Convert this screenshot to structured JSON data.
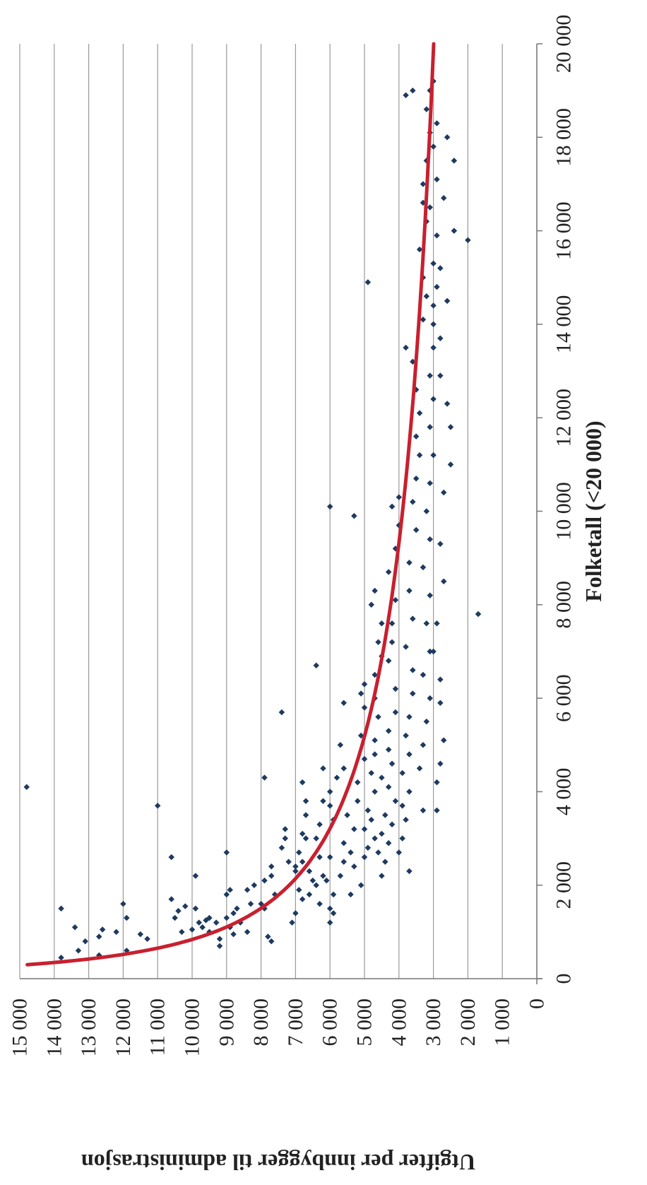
{
  "chart_data": {
    "type": "scatter",
    "orientation": "rotated-90-clockwise",
    "xlabel": "Folketall (<20 000)",
    "ylabel": "Utgifter per innbygger til administrasjon",
    "xlim": [
      0,
      20000
    ],
    "ylim": [
      0,
      15000
    ],
    "x_ticks": [
      0,
      2000,
      4000,
      6000,
      8000,
      10000,
      12000,
      14000,
      16000,
      18000,
      20000
    ],
    "x_tick_labels": [
      "0",
      "2 000",
      "4 000",
      "6 000",
      "8 000",
      "10 000",
      "12 000",
      "14 000",
      "16 000",
      "18 000",
      "20 000"
    ],
    "y_ticks": [
      0,
      1000,
      2000,
      3000,
      4000,
      5000,
      6000,
      7000,
      8000,
      9000,
      10000,
      11000,
      12000,
      13000,
      14000,
      15000
    ],
    "y_tick_labels": [
      "0",
      "1 000",
      "2 000",
      "3 000",
      "4 000",
      "5 000",
      "6 000",
      "7 000",
      "8 000",
      "9 000",
      "10 000",
      "11 000",
      "12 000",
      "13 000",
      "14 000",
      "15 000"
    ],
    "grid": "vertical lines at every y tick (value axis)",
    "marker_color": "#1e3a5f",
    "trend": {
      "type": "power",
      "color": "#c8202f",
      "anchors": [
        [
          300,
          14800
        ],
        [
          1000,
          9800
        ],
        [
          2000,
          7000
        ],
        [
          3000,
          6000
        ],
        [
          5000,
          4950
        ],
        [
          8000,
          4200
        ],
        [
          12000,
          3650
        ],
        [
          16000,
          3300
        ],
        [
          20000,
          3050
        ]
      ]
    },
    "points": [
      [
        450,
        13800
      ],
      [
        600,
        13300
      ],
      [
        800,
        13100
      ],
      [
        900,
        12700
      ],
      [
        1050,
        12600
      ],
      [
        500,
        12700
      ],
      [
        1100,
        13400
      ],
      [
        1500,
        13800
      ],
      [
        1600,
        12000
      ],
      [
        1300,
        11900
      ],
      [
        1000,
        12200
      ],
      [
        600,
        11900
      ],
      [
        950,
        11500
      ],
      [
        850,
        11300
      ],
      [
        4100,
        14800
      ],
      [
        3700,
        11000
      ],
      [
        1700,
        10600
      ],
      [
        1300,
        10500
      ],
      [
        1450,
        10400
      ],
      [
        1550,
        10200
      ],
      [
        1000,
        10300
      ],
      [
        1050,
        10000
      ],
      [
        1500,
        9900
      ],
      [
        1200,
        9800
      ],
      [
        1300,
        9500
      ],
      [
        1200,
        9300
      ],
      [
        850,
        9200
      ],
      [
        2200,
        9900
      ],
      [
        2600,
        10600
      ],
      [
        1250,
        9600
      ],
      [
        1100,
        9700
      ],
      [
        1000,
        9500
      ],
      [
        1300,
        9000
      ],
      [
        1100,
        8900
      ],
      [
        950,
        8800
      ],
      [
        700,
        9200
      ],
      [
        1400,
        8800
      ],
      [
        1500,
        8700
      ],
      [
        1600,
        8300
      ],
      [
        1800,
        9000
      ],
      [
        1900,
        8900
      ],
      [
        2700,
        9000
      ],
      [
        1900,
        8400
      ],
      [
        1200,
        8600
      ],
      [
        1000,
        8400
      ],
      [
        1600,
        8000
      ],
      [
        2000,
        8200
      ],
      [
        2100,
        7900
      ],
      [
        2200,
        7700
      ],
      [
        1500,
        7900
      ],
      [
        1800,
        7600
      ],
      [
        2400,
        7700
      ],
      [
        4300,
        7900
      ],
      [
        5700,
        7400
      ],
      [
        2800,
        7400
      ],
      [
        2500,
        7200
      ],
      [
        3000,
        7300
      ],
      [
        3200,
        7300
      ],
      [
        900,
        7800
      ],
      [
        800,
        7700
      ],
      [
        1200,
        7100
      ],
      [
        1400,
        7000
      ],
      [
        1700,
        6800
      ],
      [
        1900,
        6900
      ],
      [
        2300,
        7000
      ],
      [
        2400,
        7000
      ],
      [
        2500,
        6800
      ],
      [
        2700,
        6900
      ],
      [
        3000,
        6700
      ],
      [
        3100,
        6800
      ],
      [
        3500,
        6700
      ],
      [
        3800,
        6700
      ],
      [
        4200,
        6800
      ],
      [
        1600,
        6300
      ],
      [
        1800,
        6600
      ],
      [
        2100,
        6500
      ],
      [
        2300,
        6600
      ],
      [
        2000,
        6400
      ],
      [
        2200,
        6200
      ],
      [
        2100,
        6100
      ],
      [
        2600,
        6300
      ],
      [
        3000,
        6400
      ],
      [
        3300,
        6300
      ],
      [
        3800,
        6200
      ],
      [
        4500,
        6200
      ],
      [
        6700,
        6400
      ],
      [
        1200,
        6000
      ],
      [
        1500,
        6000
      ],
      [
        1400,
        5900
      ],
      [
        1800,
        5900
      ],
      [
        2600,
        6000
      ],
      [
        3400,
        5900
      ],
      [
        3700,
        6000
      ],
      [
        4000,
        6000
      ],
      [
        4300,
        5800
      ],
      [
        4500,
        5600
      ],
      [
        5000,
        5700
      ],
      [
        5900,
        5600
      ],
      [
        2200,
        5700
      ],
      [
        2500,
        5600
      ],
      [
        2700,
        5400
      ],
      [
        2900,
        5600
      ],
      [
        3200,
        5300
      ],
      [
        3500,
        5500
      ],
      [
        3800,
        5200
      ],
      [
        4200,
        5200
      ],
      [
        4700,
        5000
      ],
      [
        5200,
        5100
      ],
      [
        5800,
        5000
      ],
      [
        6100,
        5100
      ],
      [
        6300,
        5000
      ],
      [
        1800,
        5400
      ],
      [
        2000,
        5100
      ],
      [
        2400,
        5300
      ],
      [
        2600,
        5000
      ],
      [
        2800,
        4900
      ],
      [
        3000,
        4700
      ],
      [
        3200,
        5000
      ],
      [
        3400,
        4800
      ],
      [
        3600,
        4900
      ],
      [
        4000,
        4700
      ],
      [
        4400,
        4800
      ],
      [
        4800,
        4700
      ],
      [
        5100,
        4700
      ],
      [
        5600,
        4600
      ],
      [
        6000,
        4700
      ],
      [
        6500,
        4700
      ],
      [
        6900,
        4500
      ],
      [
        7200,
        4600
      ],
      [
        7600,
        4500
      ],
      [
        8000,
        4800
      ],
      [
        8300,
        4700
      ],
      [
        2200,
        4500
      ],
      [
        2500,
        4400
      ],
      [
        2700,
        4600
      ],
      [
        2900,
        4300
      ],
      [
        3100,
        4500
      ],
      [
        3300,
        4200
      ],
      [
        3500,
        4400
      ],
      [
        3800,
        4100
      ],
      [
        4100,
        4300
      ],
      [
        4300,
        4500
      ],
      [
        4600,
        4200
      ],
      [
        4900,
        4300
      ],
      [
        5300,
        4300
      ],
      [
        5700,
        4100
      ],
      [
        6200,
        4100
      ],
      [
        6800,
        4300
      ],
      [
        7200,
        4200
      ],
      [
        7600,
        4200
      ],
      [
        8100,
        4100
      ],
      [
        8700,
        4300
      ],
      [
        9200,
        4100
      ],
      [
        9700,
        4000
      ],
      [
        10100,
        4200
      ],
      [
        10300,
        4000
      ],
      [
        9900,
        5300
      ],
      [
        10100,
        6000
      ],
      [
        14900,
        4900
      ],
      [
        2700,
        4000
      ],
      [
        3000,
        3900
      ],
      [
        3400,
        3800
      ],
      [
        3700,
        3900
      ],
      [
        4000,
        3700
      ],
      [
        4400,
        3900
      ],
      [
        4800,
        3700
      ],
      [
        5200,
        3800
      ],
      [
        5600,
        3700
      ],
      [
        6100,
        3600
      ],
      [
        6600,
        3600
      ],
      [
        7100,
        3800
      ],
      [
        7700,
        3600
      ],
      [
        8300,
        3700
      ],
      [
        8900,
        3700
      ],
      [
        9600,
        3500
      ],
      [
        10200,
        3600
      ],
      [
        10700,
        3500
      ],
      [
        11200,
        3400
      ],
      [
        11600,
        3500
      ],
      [
        12100,
        3400
      ],
      [
        12600,
        3500
      ],
      [
        13200,
        3600
      ],
      [
        13500,
        3800
      ],
      [
        14100,
        3300
      ],
      [
        14600,
        3200
      ],
      [
        15000,
        3300
      ],
      [
        15600,
        3400
      ],
      [
        16200,
        3200
      ],
      [
        16600,
        3300
      ],
      [
        17000,
        3300
      ],
      [
        17500,
        3200
      ],
      [
        18100,
        3100
      ],
      [
        18600,
        3200
      ],
      [
        19000,
        3100
      ],
      [
        2300,
        3700
      ],
      [
        3600,
        3300
      ],
      [
        4500,
        3400
      ],
      [
        5000,
        3300
      ],
      [
        5500,
        3200
      ],
      [
        6000,
        3100
      ],
      [
        6500,
        3300
      ],
      [
        7000,
        3100
      ],
      [
        7600,
        3200
      ],
      [
        8200,
        3100
      ],
      [
        8800,
        3300
      ],
      [
        9400,
        3100
      ],
      [
        10000,
        3200
      ],
      [
        10600,
        3100
      ],
      [
        11200,
        3000
      ],
      [
        11800,
        3100
      ],
      [
        12400,
        3000
      ],
      [
        12900,
        3100
      ],
      [
        13500,
        3000
      ],
      [
        14000,
        3000
      ],
      [
        14400,
        3000
      ],
      [
        14800,
        2900
      ],
      [
        15300,
        3000
      ],
      [
        15900,
        2900
      ],
      [
        16500,
        3100
      ],
      [
        17100,
        2900
      ],
      [
        17800,
        3000
      ],
      [
        18300,
        2900
      ],
      [
        18900,
        3800
      ],
      [
        19000,
        3600
      ],
      [
        19200,
        3000
      ],
      [
        3600,
        2900
      ],
      [
        4200,
        2900
      ],
      [
        4600,
        2800
      ],
      [
        5100,
        2700
      ],
      [
        5900,
        2800
      ],
      [
        6400,
        2800
      ],
      [
        7000,
        3000
      ],
      [
        7600,
        2900
      ],
      [
        8500,
        2700
      ],
      [
        9300,
        2800
      ],
      [
        10400,
        2700
      ],
      [
        11000,
        2500
      ],
      [
        11800,
        2500
      ],
      [
        12300,
        2600
      ],
      [
        12900,
        2800
      ],
      [
        13700,
        2800
      ],
      [
        14500,
        2600
      ],
      [
        15200,
        2800
      ],
      [
        16000,
        2400
      ],
      [
        16700,
        2700
      ],
      [
        17500,
        2400
      ],
      [
        18000,
        2600
      ],
      [
        15800,
        2000
      ],
      [
        7800,
        1700
      ]
    ]
  }
}
